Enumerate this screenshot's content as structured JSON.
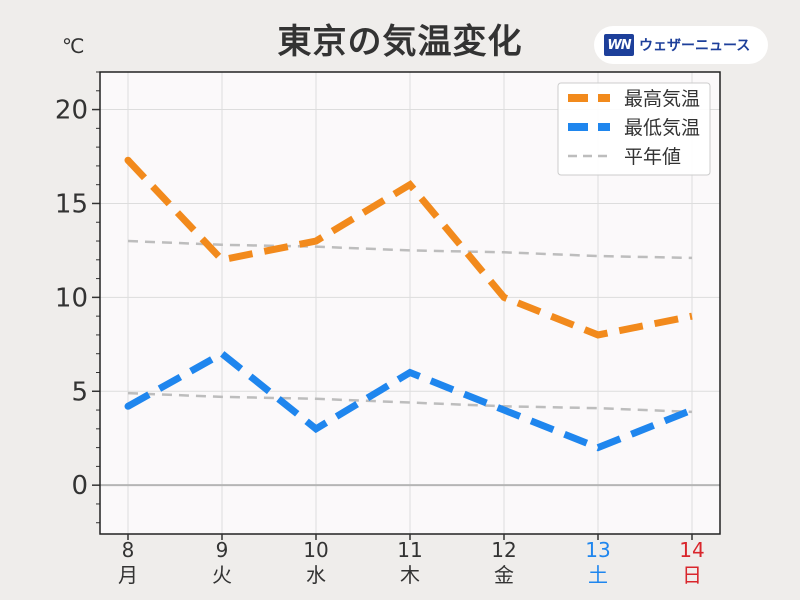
{
  "page": {
    "title": "東京の気温変化",
    "unit": "℃",
    "brand": {
      "mark": "WN",
      "name": "ウェザーニュース"
    }
  },
  "colors": {
    "high": "#f28a1c",
    "low": "#1f86ee",
    "normal": "#bdbdbd",
    "saturday": "#1f86ee",
    "sunday": "#d9262c",
    "text": "#333333",
    "grid": "#dddddd",
    "plot_bg": "#fbf9fa"
  },
  "chart_data": {
    "type": "line",
    "categories": [
      {
        "day": "8",
        "weekday": "月",
        "kind": "weekday"
      },
      {
        "day": "9",
        "weekday": "火",
        "kind": "weekday"
      },
      {
        "day": "10",
        "weekday": "水",
        "kind": "weekday"
      },
      {
        "day": "11",
        "weekday": "木",
        "kind": "weekday"
      },
      {
        "day": "12",
        "weekday": "金",
        "kind": "weekday"
      },
      {
        "day": "13",
        "weekday": "土",
        "kind": "saturday"
      },
      {
        "day": "14",
        "weekday": "日",
        "kind": "sunday"
      }
    ],
    "series": [
      {
        "name": "最高気温",
        "style": "dashed-thick",
        "color_key": "high",
        "values": [
          17.3,
          12,
          13,
          16,
          10,
          8,
          9
        ]
      },
      {
        "name": "最低気温",
        "style": "dashed-thick",
        "color_key": "low",
        "values": [
          4.2,
          7,
          3,
          6,
          4,
          2,
          4
        ]
      },
      {
        "name": "平年値",
        "style": "dashed-thin",
        "color_key": "normal",
        "values": [
          13,
          12.8,
          12.7,
          12.5,
          12.4,
          12.2,
          12.1
        ]
      },
      {
        "name": "平年値",
        "style": "dashed-thin",
        "color_key": "normal",
        "show_in_legend": false,
        "values": [
          4.9,
          4.7,
          4.6,
          4.4,
          4.2,
          4.1,
          3.9
        ]
      }
    ],
    "yticks": [
      0,
      5,
      10,
      15,
      20
    ],
    "ylim": [
      -2.6,
      22
    ],
    "grid": true,
    "legend": "top-right"
  }
}
